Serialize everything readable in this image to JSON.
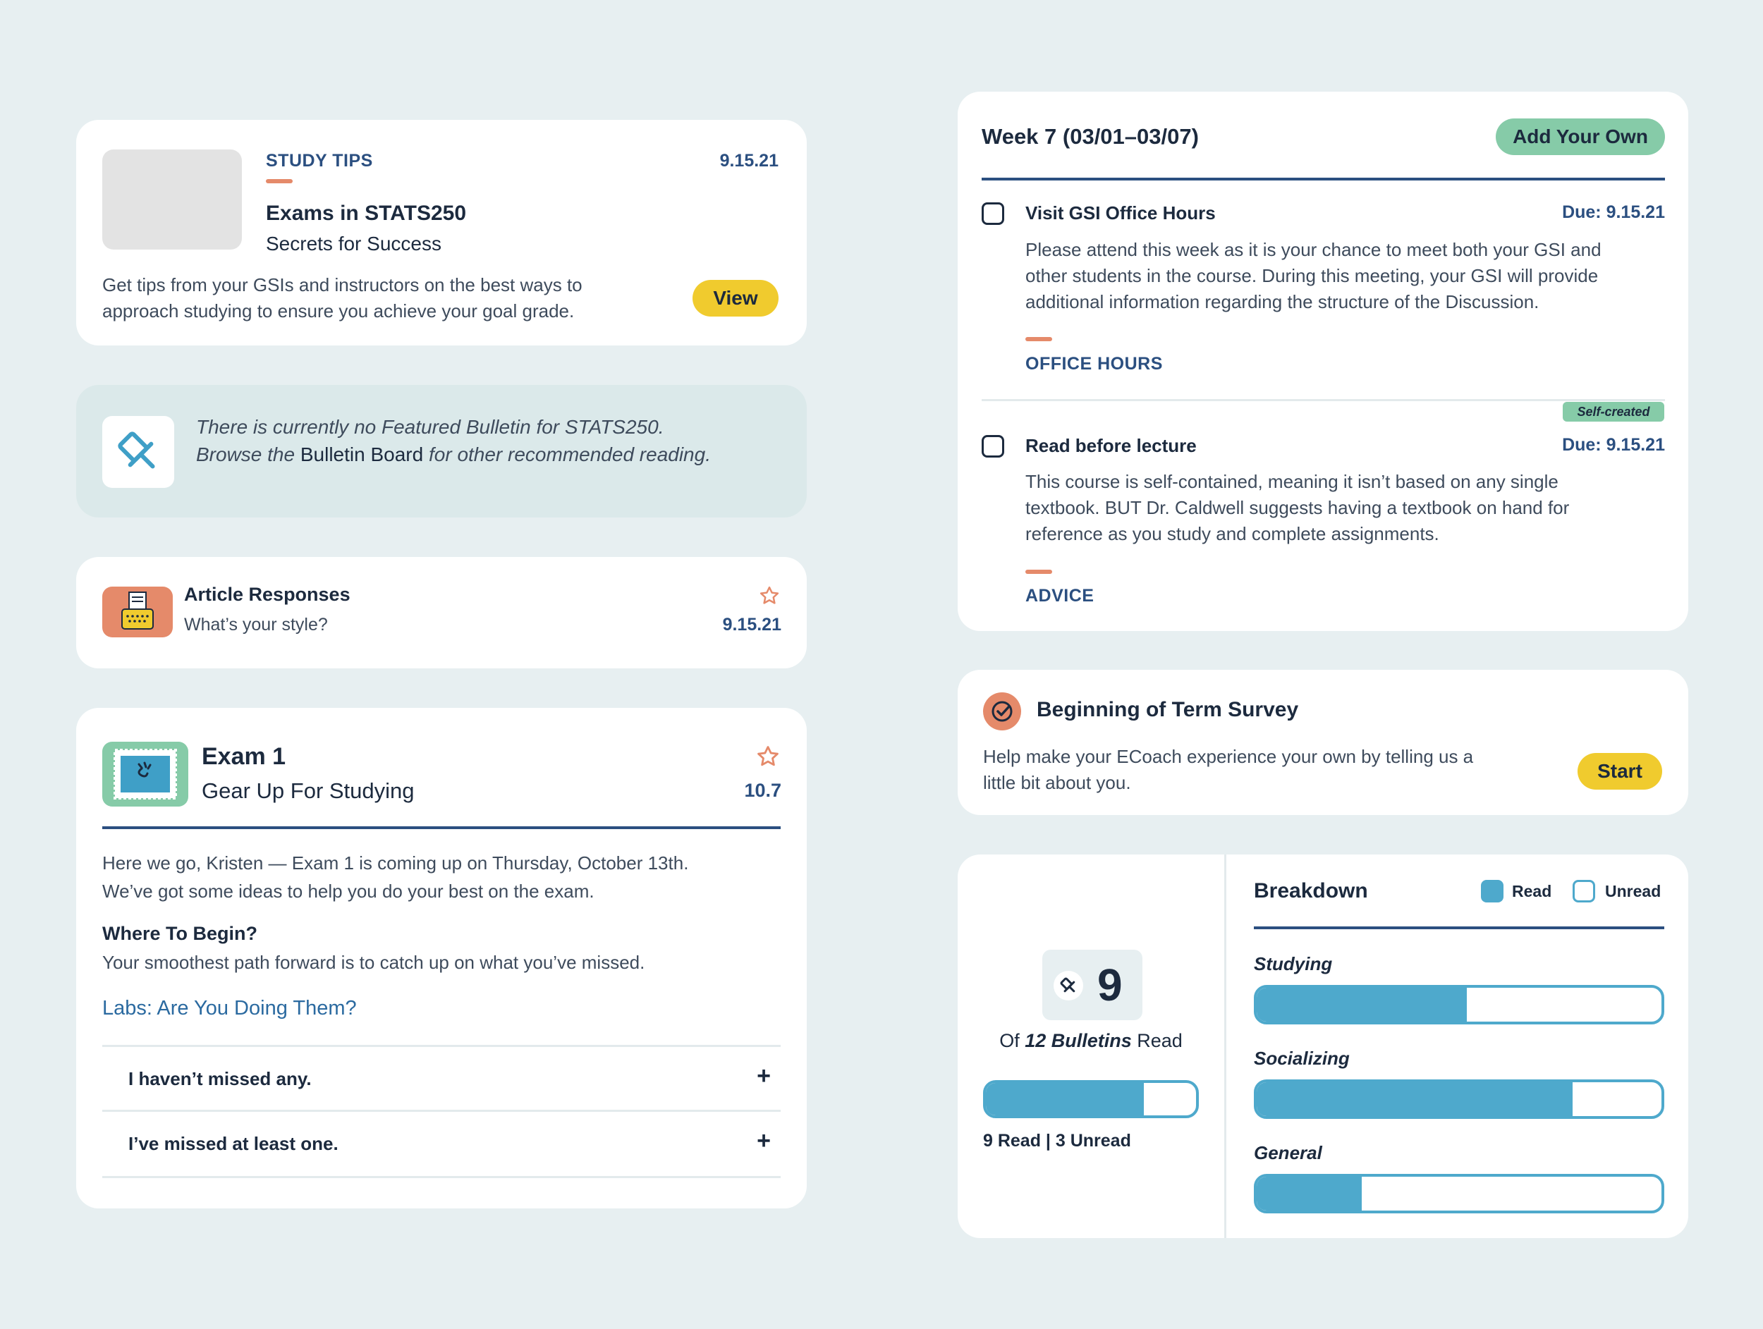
{
  "study_tips": {
    "category": "STUDY TIPS",
    "date": "9.15.21",
    "title": "Exams in STATS250",
    "subtitle": "Secrets for Success",
    "body_line1": "Get tips from your GSIs and instructors on the best ways to",
    "body_line2": "approach studying to ensure you achieve your goal grade.",
    "button": "View"
  },
  "bulletin_notice": {
    "line1": "There is currently no Featured Bulletin for STATS250.",
    "line2_prefix": "Browse the ",
    "line2_link": "Bulletin Board",
    "line2_suffix": " for other recommended reading."
  },
  "article_responses": {
    "title": "Article Responses",
    "subtitle": "What’s your style?",
    "date": "9.15.21"
  },
  "exam": {
    "title": "Exam 1",
    "subtitle": "Gear Up For Studying",
    "date": "10.7",
    "intro_line1": "Here we go, Kristen — Exam 1 is coming up on Thursday, October 13th.",
    "intro_line2": "We’ve got some ideas to help you do your best on the exam.",
    "section_heading": "Where To Begin?",
    "section_text": "Your smoothest path forward is to catch up on what you’ve missed.",
    "link": "Labs: Are You Doing Them?",
    "options": [
      {
        "label": "I haven’t missed any."
      },
      {
        "label": "I’ve missed at least one."
      }
    ]
  },
  "week": {
    "title": "Week 7 (03/01–03/07)",
    "add_button": "Add Your Own",
    "tasks": [
      {
        "title": "Visit GSI Office Hours",
        "due": "Due: 9.15.21",
        "line1": "Please attend this week as it is your chance to meet both your GSI and",
        "line2": "other students in the course. During this meeting, your GSI will provide",
        "line3": "additional information regarding the structure of the Discussion.",
        "tag": "OFFICE HOURS"
      },
      {
        "badge": "Self-created",
        "title": "Read before lecture",
        "due": "Due: 9.15.21",
        "line1": "This course is self-contained, meaning it isn’t based on any single",
        "line2": "textbook. BUT Dr. Caldwell suggests having a textbook on hand for",
        "line3": "reference as you study and complete assignments.",
        "tag": "ADVICE"
      }
    ]
  },
  "survey": {
    "title": "Beginning of Term Survey",
    "line1": "Help make your ECoach experience your own by telling us a",
    "line2": "little bit about you.",
    "button": "Start"
  },
  "bulletins": {
    "count": "9",
    "of_prefix": "Of ",
    "of_bold": "12 Bulletins",
    "of_suffix": " Read",
    "read_fraction": 0.75,
    "summary": "9 Read | 3 Unread"
  },
  "breakdown": {
    "title": "Breakdown",
    "legend_read": "Read",
    "legend_unread": "Unread",
    "categories": [
      {
        "label": "Studying",
        "fraction": 0.52
      },
      {
        "label": "Socializing",
        "fraction": 0.78
      },
      {
        "label": "General",
        "fraction": 0.26
      }
    ]
  },
  "colors": {
    "background": "#e7eff1",
    "navy": "#2b4f80",
    "accent_orange": "#e58a6a",
    "yellow": "#f0cb2e",
    "green": "#86cba8",
    "blue": "#4ea9cc"
  }
}
